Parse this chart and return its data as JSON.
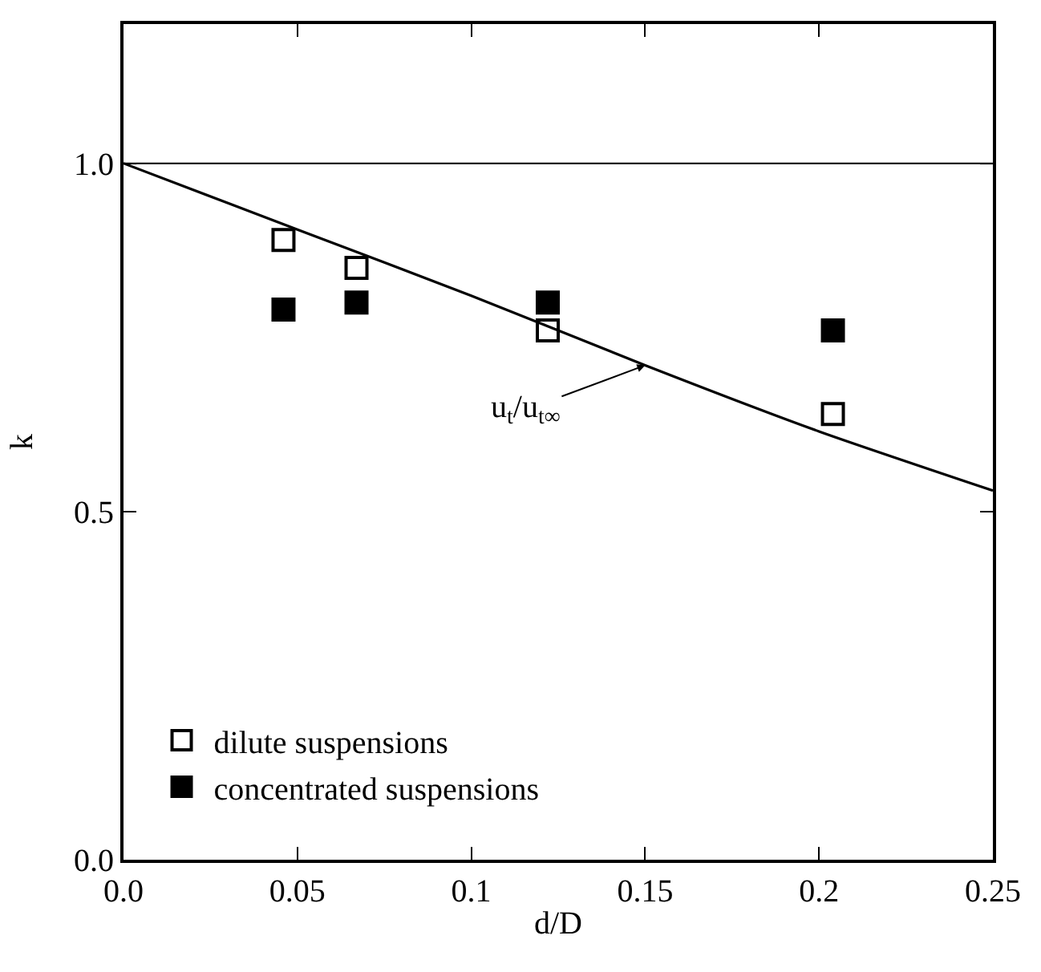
{
  "chart_data": {
    "type": "scatter",
    "xlabel": "d/D",
    "ylabel": "k",
    "xlim": [
      0,
      0.25
    ],
    "ylim": [
      0,
      1.2
    ],
    "xticks": [
      {
        "value": 0,
        "label": "0.0"
      },
      0.05,
      0.1,
      0.15,
      0.2,
      0.25
    ],
    "yticks": [
      {
        "value": 0,
        "label": "0.0"
      },
      0.5,
      {
        "value": 1,
        "label": "1.0"
      }
    ],
    "legend": "bottom left",
    "series": [
      {
        "name": "dilute suspensions",
        "color": "#000000",
        "marker": "square",
        "x": [
          0.046,
          0.067,
          0.122,
          0.204
        ],
        "values": [
          0.89,
          0.85,
          0.76,
          0.64
        ]
      },
      {
        "name": "concentrated suspensions",
        "color": "#000000",
        "marker": "square",
        "x": [
          0.046,
          0.067,
          0.122,
          0.204
        ],
        "values": [
          0.79,
          0.8,
          0.8,
          0.76
        ]
      },
      {
        "type": "line",
        "marker": "none",
        "color": "#000000",
        "x": [
          0,
          0.05,
          0.1,
          0.15,
          0.2,
          0.25
        ],
        "values": [
          1.0,
          0.905,
          0.81,
          0.71,
          0.615,
          0.53
        ]
      }
    ],
    "ref_lines": [
      {
        "axis": "y",
        "value": 1.0,
        "color": "#000000"
      }
    ],
    "annotations": [
      {
        "text": "u$_{t}$/u$_{t∞}$",
        "x": 0.15,
        "y": 0.71
      }
    ]
  }
}
